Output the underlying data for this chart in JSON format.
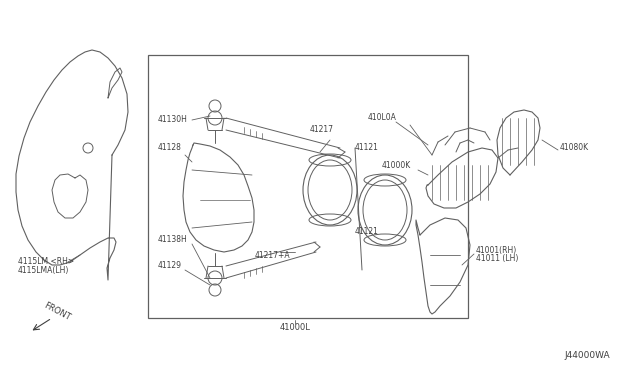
{
  "bg_color": "#ffffff",
  "line_color": "#606060",
  "text_color": "#404040",
  "fig_width": 6.4,
  "fig_height": 3.72,
  "dpi": 100,
  "diagram_code": "J44000WA",
  "labels": {
    "4115LM": "4115LM <RH>",
    "4115LMA": "4115LMA(LH)",
    "41000L": "41000L",
    "41001": "41001(RH)",
    "41011": "41011 (LH)",
    "41000K": "41000K",
    "41080K": "41080K",
    "410L0A": "410L0A",
    "41217": "41217",
    "41130H": "41130H",
    "41128": "41128",
    "41138H": "41138H",
    "41129": "41129",
    "41217A": "41217+A",
    "41121a": "41121",
    "41121b": "41121",
    "FRONT": "FRONT"
  }
}
